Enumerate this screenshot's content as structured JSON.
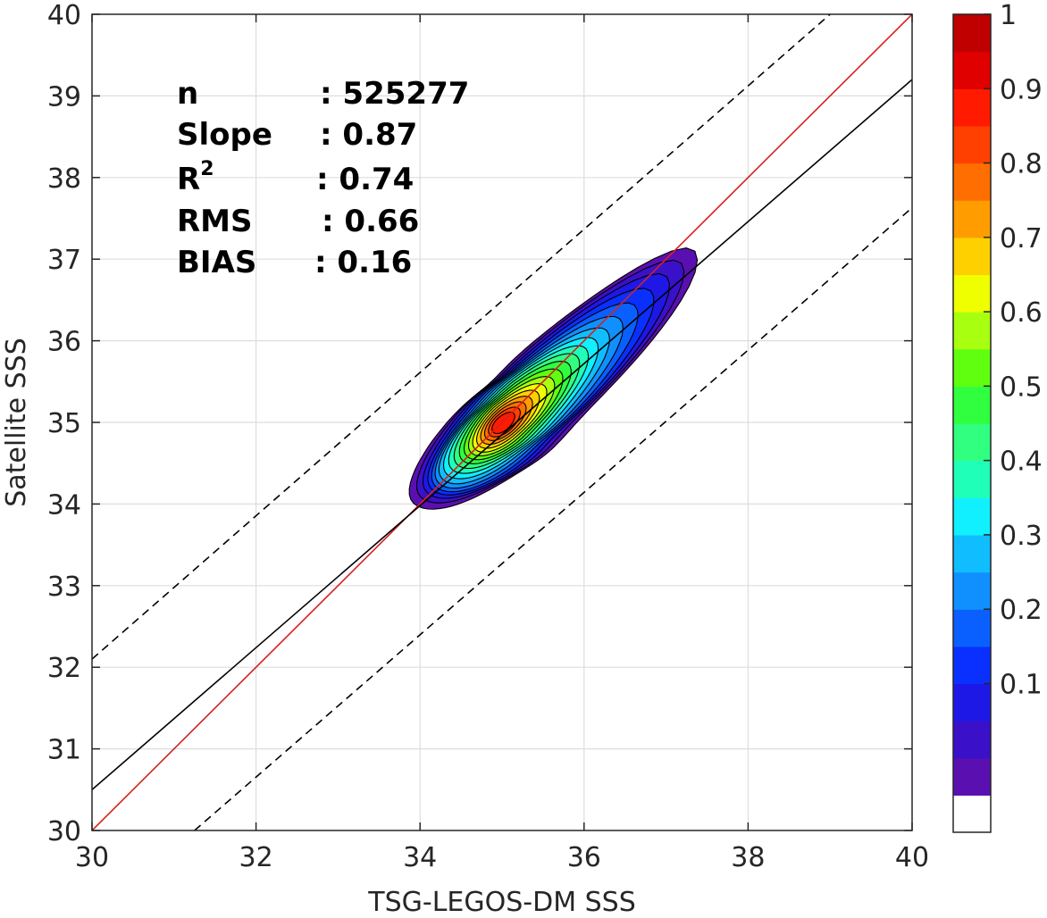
{
  "chart_data": {
    "type": "contour",
    "xlabel": "TSG-LEGOS-DM SSS",
    "ylabel": "Satellite SSS",
    "xlim": [
      30,
      40
    ],
    "ylim": [
      30,
      40
    ],
    "xticks": [
      "30",
      "32",
      "34",
      "36",
      "38",
      "40"
    ],
    "yticks": [
      "30",
      "31",
      "32",
      "33",
      "34",
      "35",
      "36",
      "37",
      "38",
      "39",
      "40"
    ],
    "grid": true,
    "stats": [
      {
        "label": "n",
        "value": ": 525277"
      },
      {
        "label": "Slope",
        "value": ": 0.87"
      },
      {
        "label": "R",
        "sup": "2",
        "value": ": 0.74"
      },
      {
        "label": "RMS",
        "value": ": 0.66"
      },
      {
        "label": "BIAS",
        "value": ": 0.16"
      }
    ],
    "lines": [
      {
        "role": "one-to-one",
        "color": "#d62020",
        "style": "solid",
        "points": [
          [
            30,
            30
          ],
          [
            40,
            40
          ]
        ]
      },
      {
        "role": "regression",
        "color": "#000000",
        "style": "solid",
        "points": [
          [
            30,
            30.5
          ],
          [
            40,
            39.2
          ]
        ]
      },
      {
        "role": "upper-bound",
        "color": "#000000",
        "style": "dashed",
        "points": [
          [
            30,
            32.1
          ],
          [
            39.0,
            40
          ]
        ]
      },
      {
        "role": "lower-bound",
        "color": "#000000",
        "style": "dashed",
        "points": [
          [
            31.25,
            30
          ],
          [
            40,
            37.63
          ]
        ]
      }
    ],
    "density": {
      "center": [
        35.0,
        34.98
      ],
      "levels": [
        0.05,
        0.1,
        0.15,
        0.2,
        0.25,
        0.3,
        0.35,
        0.4,
        0.45,
        0.5,
        0.55,
        0.6,
        0.65,
        0.7,
        0.75,
        0.8,
        0.85,
        0.9,
        0.95
      ],
      "colors": [
        "#5a10b0",
        "#3a10c8",
        "#1e18e6",
        "#0a30ff",
        "#0a60ff",
        "#1090ff",
        "#10bdff",
        "#10f0ff",
        "#20ffb8",
        "#30ff80",
        "#30ff40",
        "#60ff10",
        "#a8ff10",
        "#f0ff00",
        "#ffd000",
        "#ff9c00",
        "#ff6e00",
        "#ff4000",
        "#ff1a00",
        "#e00000",
        "#c00000",
        "#8a0000"
      ]
    },
    "colorbar": {
      "ticks": [
        "0.1",
        "0.2",
        "0.3",
        "0.4",
        "0.5",
        "0.6",
        "0.7",
        "0.8",
        "0.9",
        "1"
      ],
      "bands": [
        "#ffffff",
        "#5a10b0",
        "#3a10c8",
        "#1e18e6",
        "#0a30ff",
        "#0a60ff",
        "#1090ff",
        "#10bdff",
        "#10f0ff",
        "#20ffb8",
        "#30ff80",
        "#30ff40",
        "#60ff10",
        "#a8ff10",
        "#f0ff00",
        "#ffd000",
        "#ff9c00",
        "#ff6e00",
        "#ff4000",
        "#ff1a00",
        "#e00000",
        "#c00000"
      ]
    }
  }
}
